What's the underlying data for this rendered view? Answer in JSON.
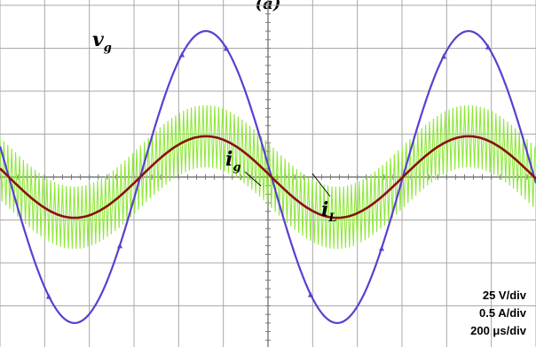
{
  "title": "(a)",
  "chart_data": {
    "type": "line",
    "grid": "on",
    "divisions": {
      "x": 12,
      "y": 8
    },
    "scales": [
      "25 V/div",
      "0.5 A/div",
      "200 μs/div"
    ],
    "series": [
      {
        "name": "v",
        "subscript": "g",
        "quantity": "grid voltage",
        "color": "#5a3fd0",
        "amplitude_div": 3.4,
        "phase_deg": 0,
        "cycles": 2.0
      },
      {
        "name": "i",
        "subscript": "g",
        "quantity": "grid current",
        "color": "#8b1010",
        "amplitude_div": 0.95,
        "phase_deg": 0,
        "cycles": 2.0
      },
      {
        "name": "i",
        "subscript": "L",
        "quantity": "inductor current",
        "color": "#8fe83a",
        "amplitude_div": 0.95,
        "ripple_band_div": 1.45,
        "phase_deg": 0,
        "cycles": 2.0
      }
    ],
    "labels": {
      "vg": {
        "main": "v",
        "sub": "g"
      },
      "ig": {
        "main": "i",
        "sub": "g"
      },
      "iL": {
        "main": "i",
        "sub": "L"
      }
    }
  },
  "colors": {
    "grid": "#a8a8a8",
    "grid_major": "#7a7a7a",
    "background": "#ffffff"
  }
}
